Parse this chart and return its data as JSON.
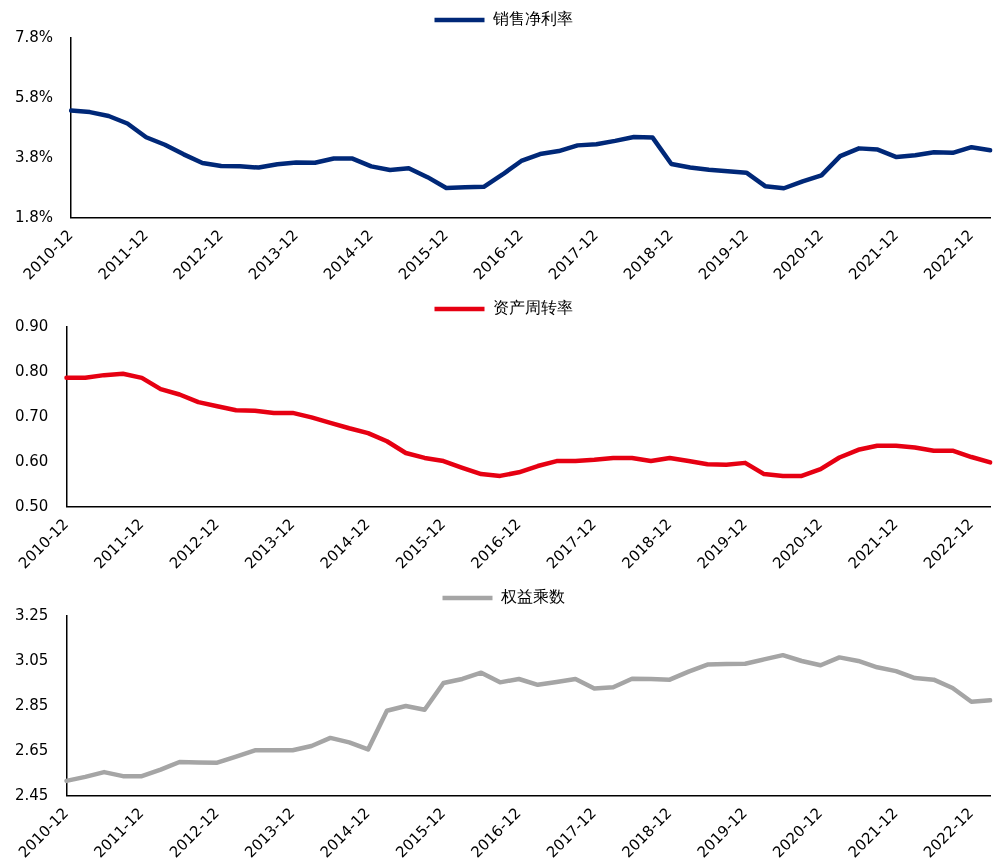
{
  "chart_data": [
    {
      "type": "line",
      "categories": [
        "2010-12",
        null,
        null,
        null,
        "2011-12",
        null,
        null,
        null,
        "2012-12",
        null,
        null,
        null,
        "2013-12",
        null,
        null,
        null,
        "2014-12",
        null,
        null,
        null,
        "2015-12",
        null,
        null,
        null,
        "2016-12",
        null,
        null,
        null,
        "2017-12",
        null,
        null,
        null,
        "2018-12",
        null,
        null,
        null,
        "2019-12",
        null,
        null,
        null,
        "2020-12",
        null,
        null,
        null,
        "2021-12",
        null,
        null,
        null,
        "2022-12",
        null
      ],
      "series": [
        {
          "name": "销售净利率",
          "color": "#002878",
          "values": [
            5.38,
            5.33,
            5.2,
            4.95,
            4.49,
            4.24,
            3.92,
            3.63,
            3.53,
            3.52,
            3.48,
            3.59,
            3.65,
            3.64,
            3.78,
            3.78,
            3.52,
            3.4,
            3.46,
            3.16,
            2.8,
            2.82,
            2.84,
            3.25,
            3.7,
            3.93,
            4.03,
            4.22,
            4.26,
            4.37,
            4.5,
            4.48,
            3.6,
            3.48,
            3.41,
            3.36,
            3.31,
            2.86,
            2.79,
            3.02,
            3.22,
            3.86,
            4.12,
            4.08,
            3.83,
            3.89,
            3.99,
            3.97,
            4.16,
            4.06
          ]
        }
      ],
      "ylim": [
        1.8,
        7.8
      ],
      "yticks": [
        {
          "value": 1.8,
          "label": "1.8%"
        },
        {
          "value": 3.8,
          "label": "3.8%"
        },
        {
          "value": 5.8,
          "label": "5.8%"
        },
        {
          "value": 7.8,
          "label": "7.8%"
        }
      ],
      "grid": false,
      "legend": "top",
      "marker": "none",
      "line_style": "solid"
    },
    {
      "type": "line",
      "categories": [
        "2010-12",
        null,
        null,
        null,
        "2011-12",
        null,
        null,
        null,
        "2012-12",
        null,
        null,
        null,
        "2013-12",
        null,
        null,
        null,
        "2014-12",
        null,
        null,
        null,
        "2015-12",
        null,
        null,
        null,
        "2016-12",
        null,
        null,
        null,
        "2017-12",
        null,
        null,
        null,
        "2018-12",
        null,
        null,
        null,
        "2019-12",
        null,
        null,
        null,
        "2020-12",
        null,
        null,
        null,
        "2021-12",
        null,
        null,
        null,
        "2022-12",
        null
      ],
      "series": [
        {
          "name": "资产周转率",
          "color": "#e60012",
          "values": [
            0.787,
            0.787,
            0.793,
            0.796,
            0.787,
            0.762,
            0.75,
            0.733,
            0.724,
            0.715,
            0.714,
            0.709,
            0.709,
            0.699,
            0.687,
            0.675,
            0.664,
            0.646,
            0.62,
            0.609,
            0.602,
            0.587,
            0.573,
            0.569,
            0.577,
            0.591,
            0.602,
            0.602,
            0.605,
            0.609,
            0.609,
            0.602,
            0.609,
            0.602,
            0.595,
            0.594,
            0.598,
            0.573,
            0.569,
            0.569,
            0.584,
            0.61,
            0.627,
            0.636,
            0.636,
            0.632,
            0.625,
            0.625,
            0.611,
            0.599
          ]
        }
      ],
      "ylim": [
        0.5,
        0.9
      ],
      "yticks": [
        {
          "value": 0.5,
          "label": "0.50"
        },
        {
          "value": 0.6,
          "label": "0.60"
        },
        {
          "value": 0.7,
          "label": "0.70"
        },
        {
          "value": 0.8,
          "label": "0.80"
        },
        {
          "value": 0.9,
          "label": "0.90"
        }
      ],
      "grid": false,
      "legend": "top",
      "marker": "none",
      "line_style": "solid"
    },
    {
      "type": "line",
      "categories": [
        "2010-12",
        null,
        null,
        null,
        "2011-12",
        null,
        null,
        null,
        "2012-12",
        null,
        null,
        null,
        "2013-12",
        null,
        null,
        null,
        "2014-12",
        null,
        null,
        null,
        "2015-12",
        null,
        null,
        null,
        "2016-12",
        null,
        null,
        null,
        "2017-12",
        null,
        null,
        null,
        "2018-12",
        null,
        null,
        null,
        "2019-12",
        null,
        null,
        null,
        "2020-12",
        null,
        null,
        null,
        "2021-12",
        null,
        null,
        null,
        "2022-12",
        null
      ],
      "series": [
        {
          "name": "权益乘数",
          "color": "#a5a5a5",
          "values": [
            2.517,
            2.535,
            2.556,
            2.538,
            2.538,
            2.567,
            2.601,
            2.599,
            2.598,
            2.625,
            2.653,
            2.653,
            2.653,
            2.672,
            2.708,
            2.688,
            2.657,
            2.829,
            2.85,
            2.833,
            2.952,
            2.97,
            2.998,
            2.955,
            2.97,
            2.944,
            2.957,
            2.97,
            2.928,
            2.933,
            2.971,
            2.97,
            2.967,
            3.003,
            3.034,
            3.037,
            3.038,
            3.057,
            3.076,
            3.05,
            3.031,
            3.066,
            3.05,
            3.022,
            3.005,
            2.974,
            2.967,
            2.93,
            2.869,
            2.875
          ]
        }
      ],
      "ylim": [
        2.45,
        3.25
      ],
      "yticks": [
        2.45,
        2.65,
        2.85,
        3.05,
        3.25
      ],
      "grid": false,
      "legend": "top",
      "marker": "none",
      "line_style": "solid"
    }
  ]
}
